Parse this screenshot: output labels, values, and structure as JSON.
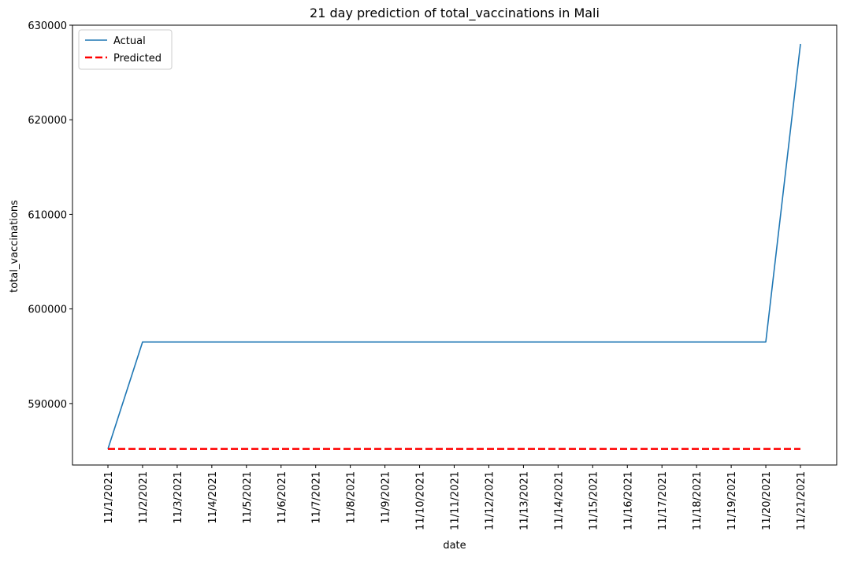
{
  "chart_data": {
    "type": "line",
    "title": "21 day prediction of total_vaccinations in Mali",
    "xlabel": "date",
    "ylabel": "total_vaccinations",
    "categories": [
      "11/1/2021",
      "11/2/2021",
      "11/3/2021",
      "11/4/2021",
      "11/5/2021",
      "11/6/2021",
      "11/7/2021",
      "11/8/2021",
      "11/9/2021",
      "11/10/2021",
      "11/11/2021",
      "11/12/2021",
      "11/13/2021",
      "11/14/2021",
      "11/15/2021",
      "11/16/2021",
      "11/17/2021",
      "11/18/2021",
      "11/19/2021",
      "11/20/2021",
      "11/21/2021"
    ],
    "series": [
      {
        "name": "Actual",
        "color": "#1f77b4",
        "style": "solid",
        "values": [
          585200,
          596500,
          596500,
          596500,
          596500,
          596500,
          596500,
          596500,
          596500,
          596500,
          596500,
          596500,
          596500,
          596500,
          596500,
          596500,
          596500,
          596500,
          596500,
          596500,
          628000
        ]
      },
      {
        "name": "Predicted",
        "color": "#ff0000",
        "style": "dashed",
        "values": [
          585200,
          585200,
          585200,
          585200,
          585200,
          585200,
          585200,
          585200,
          585200,
          585200,
          585200,
          585200,
          585200,
          585200,
          585200,
          585200,
          585200,
          585200,
          585200,
          585200,
          585200
        ]
      }
    ],
    "yticks": [
      590000,
      600000,
      610000,
      620000,
      630000
    ],
    "ylim": [
      583500,
      630000
    ],
    "grid": false,
    "legend": "upper-left"
  }
}
